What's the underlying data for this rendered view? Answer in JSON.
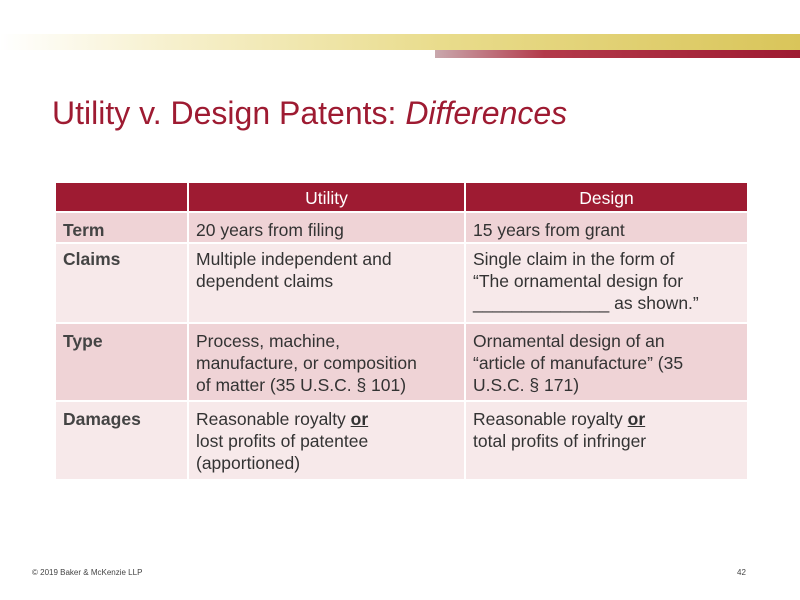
{
  "slide": {
    "title_main": "Utility v. Design Patents: ",
    "title_emphasis": "Differences"
  },
  "table": {
    "headers": [
      "",
      "Utility",
      "Design"
    ],
    "rows": [
      {
        "label": "Term",
        "utility": [
          "20 years from filing"
        ],
        "design": [
          "15 years from grant"
        ]
      },
      {
        "label": "Claims",
        "utility": [
          "Multiple independent and",
          "dependent claims"
        ],
        "design": [
          "Single claim in the form of",
          "“The ornamental design for",
          "______________ as shown.”"
        ]
      },
      {
        "label": "Type",
        "utility": [
          "Process, machine,",
          "manufacture, or composition",
          "of matter (35 U.S.C. § 101)"
        ],
        "design": [
          "Ornamental design of an",
          "“article of manufacture” (35",
          "U.S.C. § 171)"
        ]
      },
      {
        "label": "Damages",
        "utility_line1_pre": "Reasonable royalty ",
        "utility_line1_or": "or",
        "utility": [
          "lost profits of patentee",
          "(apportioned)"
        ],
        "design_line1_pre": "Reasonable royalty ",
        "design_line1_or": "or",
        "design": [
          "total profits of infringer"
        ]
      }
    ]
  },
  "footer": {
    "copyright": "© 2019 Baker & McKenzie LLP",
    "page_number": "42"
  },
  "colors": {
    "accent": "#9e1b32",
    "row_dark": "#efd3d6",
    "row_light": "#f7e9ea",
    "gold": "#d9c55a"
  }
}
